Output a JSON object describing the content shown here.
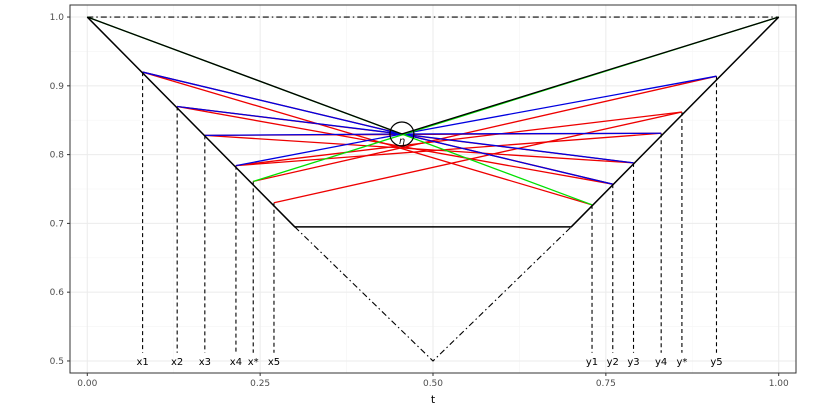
{
  "chart_data": {
    "type": "line",
    "title": "",
    "xlabel": "t",
    "ylabel": "",
    "xlim": [
      -0.025,
      1.025
    ],
    "ylim": [
      0.4825,
      1.0175
    ],
    "x_ticks": [
      0.0,
      0.25,
      0.5,
      0.75,
      1.0
    ],
    "x_tick_labels": [
      "0.00",
      "0.25",
      "0.50",
      "0.75",
      "1.00"
    ],
    "y_ticks": [
      0.5,
      0.6,
      0.7,
      0.8,
      0.9,
      1.0
    ],
    "y_tick_labels": [
      "0.5",
      "0.6",
      "0.7",
      "0.8",
      "0.9",
      "1.0"
    ],
    "grid": true,
    "background": "#ffffff",
    "colors": {
      "green": "#00e000",
      "blue": "#0000e0",
      "red": "#ee0000",
      "black": "#000000",
      "grid_major": "#ebebeb",
      "grid_minor": "#f5f5f5",
      "panel_border": "#333333"
    },
    "center_point": {
      "x": 0.455,
      "y": 0.83,
      "label": "η"
    },
    "top_line": {
      "x": [
        0.0,
        1.0
      ],
      "y": [
        1.0,
        1.0
      ]
    },
    "boundary": {
      "x": [
        0.0,
        0.3,
        0.7,
        1.0
      ],
      "y": [
        1.0,
        0.695,
        0.695,
        1.0
      ]
    },
    "bottom_v": {
      "x": [
        0.3,
        0.5,
        0.7
      ],
      "y": [
        0.695,
        0.5,
        0.695
      ]
    },
    "marked_points": [
      {
        "label": "x1",
        "x": 0.08,
        "y": 0.92
      },
      {
        "label": "x2",
        "x": 0.13,
        "y": 0.87
      },
      {
        "label": "x3",
        "x": 0.17,
        "y": 0.828
      },
      {
        "label": "x4",
        "x": 0.215,
        "y": 0.784
      },
      {
        "label": "x*",
        "x": 0.24,
        "y": 0.761
      },
      {
        "label": "x5",
        "x": 0.27,
        "y": 0.73
      },
      {
        "label": "y1",
        "x": 0.73,
        "y": 0.727
      },
      {
        "label": "y2",
        "x": 0.76,
        "y": 0.757
      },
      {
        "label": "y3",
        "x": 0.79,
        "y": 0.788
      },
      {
        "label": "y4",
        "x": 0.83,
        "y": 0.831
      },
      {
        "label": "y*",
        "x": 0.86,
        "y": 0.862
      },
      {
        "label": "y5",
        "x": 0.91,
        "y": 0.914
      }
    ],
    "series": [
      {
        "color": "green",
        "segments": [
          {
            "x": [
              0.0,
              0.73
            ],
            "y": [
              1.0,
              0.727
            ]
          },
          {
            "x": [
              0.24,
              1.0
            ],
            "y": [
              0.761,
              1.0
            ]
          }
        ]
      },
      {
        "color": "black",
        "segments": [
          {
            "x": [
              0.0,
              0.455
            ],
            "y": [
              1.0,
              0.83
            ]
          },
          {
            "x": [
              0.455,
              1.0
            ],
            "y": [
              0.83,
              1.0
            ]
          }
        ]
      },
      {
        "color": "blue",
        "segments": [
          {
            "x": [
              0.08,
              0.455
            ],
            "y": [
              0.92,
              0.83
            ]
          },
          {
            "x": [
              0.13,
              0.455
            ],
            "y": [
              0.87,
              0.83
            ]
          },
          {
            "x": [
              0.17,
              0.455
            ],
            "y": [
              0.828,
              0.83
            ]
          },
          {
            "x": [
              0.215,
              0.455
            ],
            "y": [
              0.784,
              0.83
            ]
          },
          {
            "x": [
              0.455,
              0.76
            ],
            "y": [
              0.83,
              0.757
            ]
          },
          {
            "x": [
              0.455,
              0.79
            ],
            "y": [
              0.83,
              0.788
            ]
          },
          {
            "x": [
              0.455,
              0.83
            ],
            "y": [
              0.83,
              0.831
            ]
          },
          {
            "x": [
              0.455,
              0.91
            ],
            "y": [
              0.83,
              0.914
            ]
          }
        ]
      },
      {
        "color": "red",
        "segments": [
          {
            "x": [
              0.08,
              0.76
            ],
            "y": [
              0.92,
              0.757
            ]
          },
          {
            "x": [
              0.13,
              0.79
            ],
            "y": [
              0.87,
              0.788
            ]
          },
          {
            "x": [
              0.17,
              0.83
            ],
            "y": [
              0.828,
              0.831
            ]
          },
          {
            "x": [
              0.215,
              0.86
            ],
            "y": [
              0.784,
              0.862
            ]
          },
          {
            "x": [
              0.24,
              0.91
            ],
            "y": [
              0.761,
              0.914
            ]
          },
          {
            "x": [
              0.27,
              0.86
            ],
            "y": [
              0.73,
              0.862
            ]
          },
          {
            "x": [
              0.08,
              0.73
            ],
            "y": [
              0.92,
              0.727
            ]
          },
          {
            "x": [
              0.13,
              0.76
            ],
            "y": [
              0.87,
              0.757
            ]
          },
          {
            "x": [
              0.17,
              0.79
            ],
            "y": [
              0.828,
              0.788
            ]
          },
          {
            "x": [
              0.215,
              0.83
            ],
            "y": [
              0.784,
              0.831
            ]
          }
        ]
      }
    ]
  }
}
